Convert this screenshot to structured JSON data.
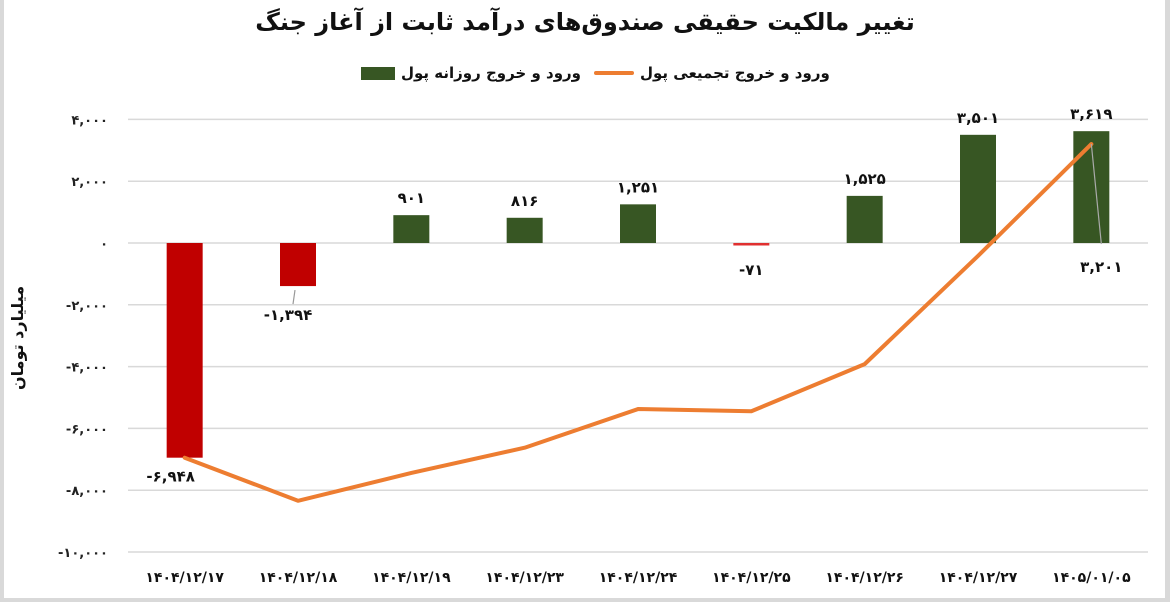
{
  "title": "تغییر مالکیت حقیقی صندوق‌های درآمد ثابت از آغاز جنگ",
  "legend": {
    "bar_label": "ورود و خروج روزانه پول",
    "line_label": "ورود و خروج تجمیعی پول"
  },
  "y_axis_label": "میلیارد تومان",
  "y_ticks": [
    "۴,۰۰۰",
    "۲,۰۰۰",
    "۰",
    "-۲,۰۰۰",
    "-۴,۰۰۰",
    "-۶,۰۰۰",
    "-۸,۰۰۰",
    "-۱۰,۰۰۰"
  ],
  "colors": {
    "positive_bar": "#375623",
    "negative_bar": "#c00000",
    "line": "#ed7d31",
    "grid": "#d9d9d9"
  },
  "chart_data": {
    "type": "bar",
    "title": "تغییر مالکیت حقیقی صندوق‌های درآمد ثابت از آغاز جنگ",
    "xlabel": "",
    "ylabel": "میلیارد تومان",
    "ylim": [
      -10000,
      4000
    ],
    "yticks": [
      4000,
      2000,
      0,
      -2000,
      -4000,
      -6000,
      -8000,
      -10000
    ],
    "grid": true,
    "legend_position": "top",
    "categories": [
      "۱۴۰۴/۱۲/۱۷",
      "۱۴۰۴/۱۲/۱۸",
      "۱۴۰۴/۱۲/۱۹",
      "۱۴۰۴/۱۲/۲۳",
      "۱۴۰۴/۱۲/۲۴",
      "۱۴۰۴/۱۲/۲۵",
      "۱۴۰۴/۱۲/۲۶",
      "۱۴۰۴/۱۲/۲۷",
      "۱۴۰۵/۰۱/۰۵"
    ],
    "series": [
      {
        "name": "ورود و خروج روزانه پول",
        "type": "bar",
        "values": [
          -6948,
          -1394,
          901,
          816,
          1251,
          -71,
          1525,
          3501,
          3619
        ],
        "labels": [
          "-۶,۹۴۸",
          "-۱,۳۹۴",
          "۹۰۱",
          "۸۱۶",
          "۱,۲۵۱",
          "-۷۱",
          "۱,۵۲۵",
          "۳,۵۰۱",
          "۳,۶۱۹"
        ]
      },
      {
        "name": "ورود و خروج تجمیعی پول",
        "type": "line",
        "values": [
          -6948,
          -8342,
          -7441,
          -6625,
          -5374,
          -5445,
          -3920,
          -419,
          3201
        ],
        "labels": [
          "",
          "",
          "",
          "",
          "",
          "",
          "",
          "",
          "۳,۲۰۱"
        ]
      }
    ]
  }
}
